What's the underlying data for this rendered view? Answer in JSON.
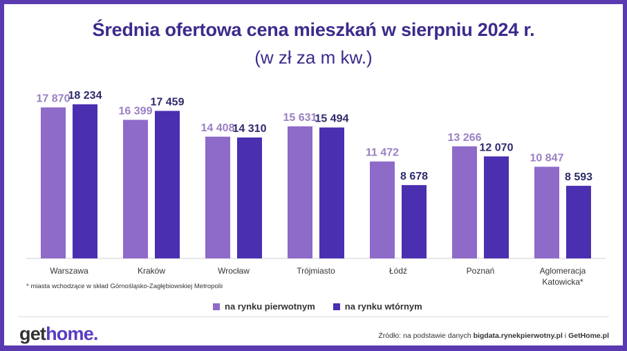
{
  "title": "Średnia ofertowa cena mieszkań w sierpniu  2024 r.",
  "subtitle": "(w zł za m kw.)",
  "footnote": "* miasta wchodzące w skład Górnośląsko-Zagłębiowskiej Metropolii",
  "legend": {
    "primary": "na rynku pierwotnym",
    "secondary": "na rynku wtórnym"
  },
  "logo": {
    "part1": "get",
    "part2": "home."
  },
  "source": {
    "prefix": "Źródło: na podstawie danych ",
    "site1": "bigdata.rynekpierwotny.pl",
    "sep": " i ",
    "site2": "GetHome.pl"
  },
  "colors": {
    "primary": "#8e6ac9",
    "secondary": "#4a2fb0",
    "primary_label": "#9a7fc4",
    "secondary_label": "#2e2a6b",
    "frame": "#5a3ab0"
  },
  "chart_data": {
    "type": "bar",
    "categories": [
      "Warszawa",
      "Kraków",
      "Wrocław",
      "Trójmiasto",
      "Łódź",
      "Poznań",
      "Aglomeracja\nKatowicka*"
    ],
    "series": [
      {
        "name": "na rynku pierwotnym",
        "values": [
          17870,
          16399,
          14408,
          15631,
          11472,
          13266,
          10847
        ],
        "labels": [
          "17 870",
          "16 399",
          "14 408",
          "15 631",
          "11 472",
          "13 266",
          "10 847"
        ]
      },
      {
        "name": "na rynku wtórnym",
        "values": [
          18234,
          17459,
          14310,
          15494,
          8678,
          12070,
          8593
        ],
        "labels": [
          "18 234",
          "17 459",
          "14 310",
          "15 494",
          "8 678",
          "12 070",
          "8 593"
        ]
      }
    ],
    "ylim": [
      0,
      20000
    ],
    "grid": false,
    "legend_position": "bottom"
  }
}
